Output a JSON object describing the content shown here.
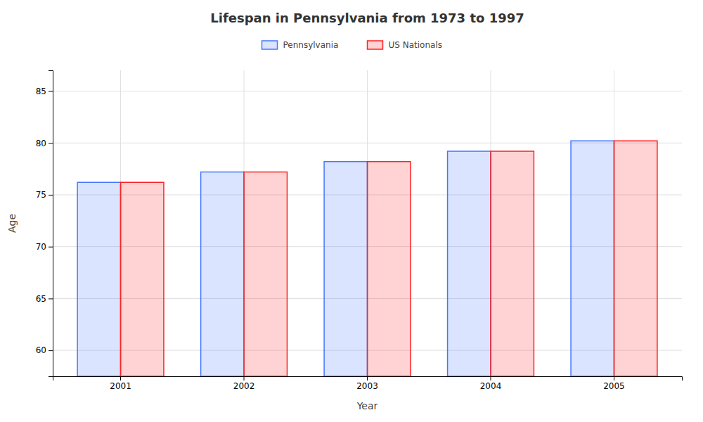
{
  "chart_data": {
    "type": "bar",
    "title": "Lifespan in Pennsylvania from 1973 to 1997",
    "xlabel": "Year",
    "ylabel": "Age",
    "categories": [
      "2001",
      "2002",
      "2003",
      "2004",
      "2005"
    ],
    "series": [
      {
        "name": "Pennsylvania",
        "color": "#4477ff",
        "values": [
          76.2,
          77.2,
          78.2,
          79.2,
          80.2
        ]
      },
      {
        "name": "US Nationals",
        "color": "#ff2222",
        "values": [
          76.2,
          77.2,
          78.2,
          79.2,
          80.2
        ]
      }
    ],
    "ylim": [
      57.5,
      87
    ],
    "yticks": [
      60,
      65,
      70,
      75,
      80,
      85
    ],
    "grid": true,
    "legend": "top"
  }
}
